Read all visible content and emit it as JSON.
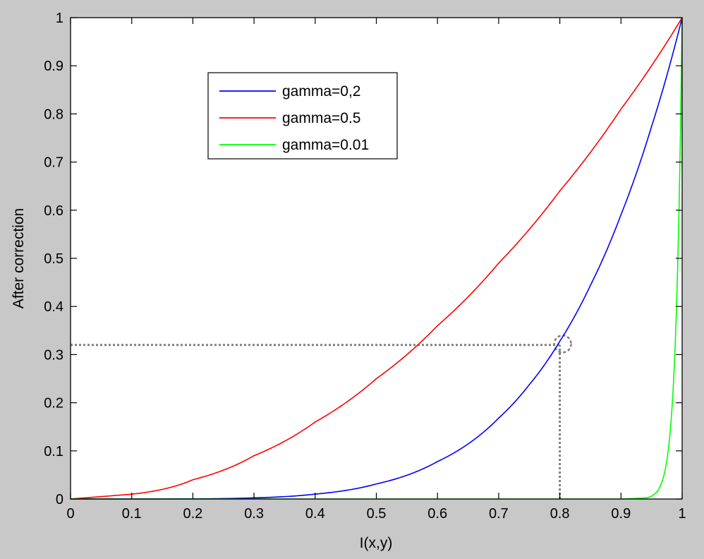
{
  "chart_data": {
    "type": "line",
    "xlabel": "I(x,y)",
    "ylabel": "After correction",
    "xlim": [
      0,
      1
    ],
    "ylim": [
      0,
      1
    ],
    "xticks": [
      "0",
      "0.1",
      "0.2",
      "0.3",
      "0.4",
      "0.5",
      "0.6",
      "0.7",
      "0.8",
      "0.9",
      "1"
    ],
    "yticks": [
      "0",
      "0.1",
      "0.2",
      "0.3",
      "0.4",
      "0.5",
      "0.6",
      "0.7",
      "0.8",
      "0.9",
      "1"
    ],
    "grid": false,
    "legend_position": "top-left",
    "series": [
      {
        "name": "gamma=0,2",
        "color": "#0000ff",
        "x": [
          0,
          0.1,
          0.2,
          0.3,
          0.4,
          0.5,
          0.6,
          0.7,
          0.75,
          0.8,
          0.85,
          0.9,
          0.95,
          1
        ],
        "y": [
          0,
          0.0001,
          0.0003,
          0.0024,
          0.0102,
          0.0313,
          0.0778,
          0.1681,
          0.2373,
          0.3277,
          0.4437,
          0.5905,
          0.7738,
          1
        ]
      },
      {
        "name": "gamma=0.5",
        "color": "#ff0000",
        "x": [
          0,
          0.1,
          0.2,
          0.3,
          0.4,
          0.5,
          0.6,
          0.7,
          0.8,
          0.9,
          1
        ],
        "y": [
          0,
          0.01,
          0.04,
          0.09,
          0.16,
          0.25,
          0.36,
          0.49,
          0.64,
          0.81,
          1
        ]
      },
      {
        "name": "gamma=0.01",
        "color": "#00ff00",
        "x": [
          0,
          0.9,
          0.94,
          0.95,
          0.96,
          0.97,
          0.98,
          0.99,
          1
        ],
        "y": [
          0,
          0,
          0.002,
          0.006,
          0.017,
          0.048,
          0.133,
          0.366,
          1
        ]
      }
    ],
    "annotations": [
      {
        "type": "dotted-horizontal",
        "y": 0.32,
        "x_from": 0,
        "x_to": 0.8,
        "color": "#808080"
      },
      {
        "type": "dotted-vertical",
        "x": 0.8,
        "y_from": 0,
        "y_to": 0.32,
        "color": "#808080"
      },
      {
        "type": "dashed-circle",
        "x": 0.8,
        "y": 0.325,
        "color": "#808080"
      }
    ]
  }
}
